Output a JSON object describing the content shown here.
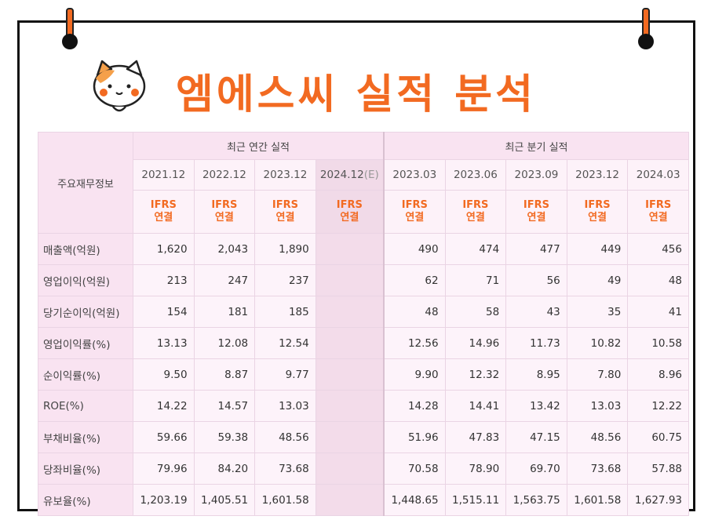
{
  "title": "엠에스씨 실적 분석",
  "table": {
    "label_header": "주요재무정보",
    "group_annual": "최근 연간 실적",
    "group_quarterly": "최근 분기 실적",
    "periods": [
      "2021.12",
      "2022.12",
      "2023.12",
      "2024.12",
      "2023.03",
      "2023.06",
      "2023.09",
      "2023.12",
      "2024.03"
    ],
    "estimate_mark": "(E)",
    "basis_top": "IFRS",
    "basis_bottom": "연결",
    "rows": [
      {
        "label": "매출액(억원)",
        "values": [
          "1,620",
          "2,043",
          "1,890",
          "",
          "490",
          "474",
          "477",
          "449",
          "456"
        ]
      },
      {
        "label": "영업이익(억원)",
        "values": [
          "213",
          "247",
          "237",
          "",
          "62",
          "71",
          "56",
          "49",
          "48"
        ]
      },
      {
        "label": "당기순이익(억원)",
        "values": [
          "154",
          "181",
          "185",
          "",
          "48",
          "58",
          "43",
          "35",
          "41"
        ]
      },
      {
        "label": "영업이익률(%)",
        "values": [
          "13.13",
          "12.08",
          "12.54",
          "",
          "12.56",
          "14.96",
          "11.73",
          "10.82",
          "10.58"
        ]
      },
      {
        "label": "순이익률(%)",
        "values": [
          "9.50",
          "8.87",
          "9.77",
          "",
          "9.90",
          "12.32",
          "8.95",
          "7.80",
          "8.96"
        ]
      },
      {
        "label": "ROE(%)",
        "values": [
          "14.22",
          "14.57",
          "13.03",
          "",
          "14.28",
          "14.41",
          "13.42",
          "13.03",
          "12.22"
        ]
      },
      {
        "label": "부채비율(%)",
        "values": [
          "59.66",
          "59.38",
          "48.56",
          "",
          "51.96",
          "47.83",
          "47.15",
          "48.56",
          "60.75"
        ]
      },
      {
        "label": "당좌비율(%)",
        "values": [
          "79.96",
          "84.20",
          "73.68",
          "",
          "70.58",
          "78.90",
          "69.70",
          "73.68",
          "57.88"
        ]
      },
      {
        "label": "유보율(%)",
        "values": [
          "1,203.19",
          "1,405.51",
          "1,601.58",
          "",
          "1,448.65",
          "1,515.11",
          "1,563.75",
          "1,601.58",
          "1,627.93"
        ]
      }
    ]
  },
  "colors": {
    "accent": "#f26a21",
    "table_bg": "#fbe8f4"
  },
  "icons": {
    "mascot": "cat-mascot-icon",
    "pins": "pushpin-icon"
  }
}
